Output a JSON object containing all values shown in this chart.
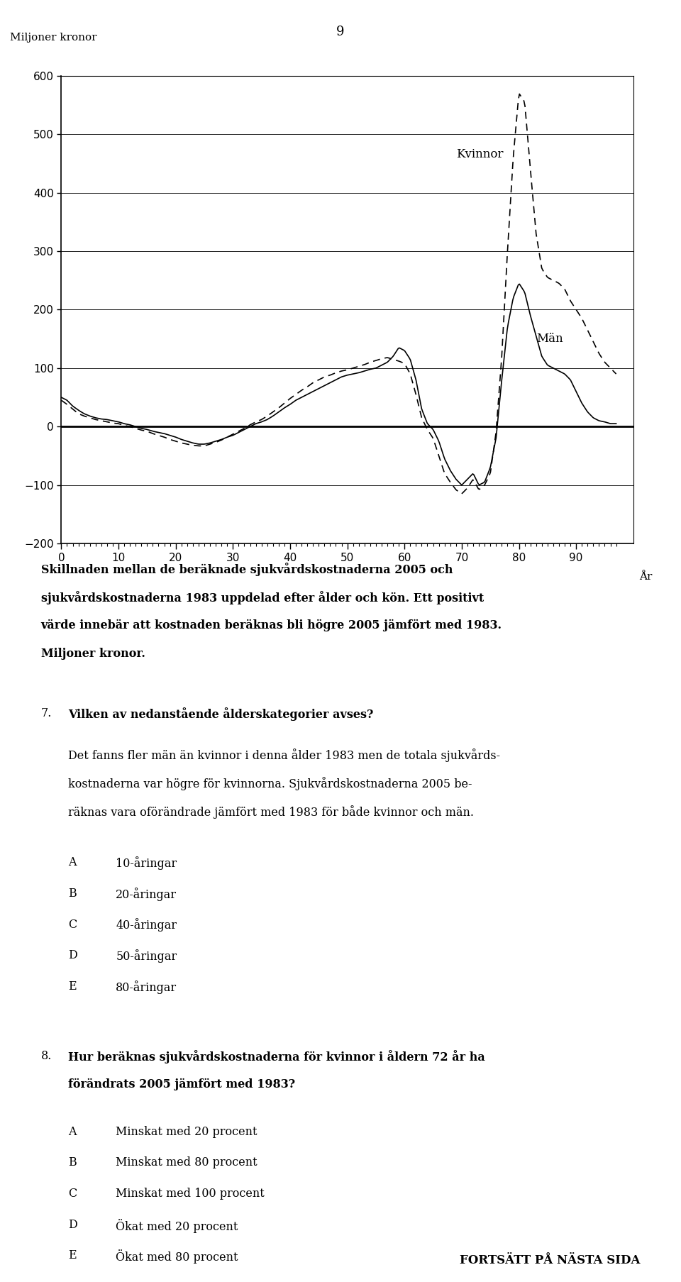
{
  "page_number": "9",
  "ylabel_above": "Miljoner kronor",
  "xlabel": "År",
  "ylim": [
    -200,
    600
  ],
  "xlim": [
    0,
    100
  ],
  "yticks": [
    -200,
    -100,
    0,
    100,
    200,
    300,
    400,
    500,
    600
  ],
  "xticks": [
    0,
    10,
    20,
    30,
    40,
    50,
    60,
    70,
    80,
    90
  ],
  "kvinnor_label": "Kvinnor",
  "man_label": "Män",
  "man_points": [
    [
      0,
      50
    ],
    [
      1,
      45
    ],
    [
      2,
      35
    ],
    [
      3,
      28
    ],
    [
      4,
      22
    ],
    [
      5,
      18
    ],
    [
      6,
      15
    ],
    [
      7,
      13
    ],
    [
      8,
      12
    ],
    [
      9,
      10
    ],
    [
      10,
      8
    ],
    [
      11,
      5
    ],
    [
      12,
      3
    ],
    [
      13,
      0
    ],
    [
      14,
      -3
    ],
    [
      15,
      -5
    ],
    [
      16,
      -8
    ],
    [
      17,
      -10
    ],
    [
      18,
      -12
    ],
    [
      19,
      -15
    ],
    [
      20,
      -18
    ],
    [
      21,
      -22
    ],
    [
      22,
      -25
    ],
    [
      23,
      -28
    ],
    [
      24,
      -30
    ],
    [
      25,
      -30
    ],
    [
      26,
      -28
    ],
    [
      27,
      -25
    ],
    [
      28,
      -22
    ],
    [
      29,
      -18
    ],
    [
      30,
      -15
    ],
    [
      31,
      -10
    ],
    [
      32,
      -5
    ],
    [
      33,
      0
    ],
    [
      34,
      5
    ],
    [
      35,
      8
    ],
    [
      36,
      12
    ],
    [
      37,
      18
    ],
    [
      38,
      25
    ],
    [
      39,
      32
    ],
    [
      40,
      38
    ],
    [
      41,
      45
    ],
    [
      42,
      50
    ],
    [
      43,
      55
    ],
    [
      44,
      60
    ],
    [
      45,
      65
    ],
    [
      46,
      70
    ],
    [
      47,
      75
    ],
    [
      48,
      80
    ],
    [
      49,
      85
    ],
    [
      50,
      88
    ],
    [
      51,
      90
    ],
    [
      52,
      92
    ],
    [
      53,
      95
    ],
    [
      54,
      98
    ],
    [
      55,
      100
    ],
    [
      56,
      105
    ],
    [
      57,
      110
    ],
    [
      58,
      120
    ],
    [
      59,
      135
    ],
    [
      60,
      130
    ],
    [
      61,
      115
    ],
    [
      62,
      80
    ],
    [
      63,
      30
    ],
    [
      64,
      5
    ],
    [
      65,
      -5
    ],
    [
      66,
      -25
    ],
    [
      67,
      -55
    ],
    [
      68,
      -75
    ],
    [
      69,
      -90
    ],
    [
      70,
      -100
    ],
    [
      71,
      -90
    ],
    [
      72,
      -80
    ],
    [
      73,
      -100
    ],
    [
      74,
      -95
    ],
    [
      75,
      -70
    ],
    [
      76,
      -20
    ],
    [
      77,
      80
    ],
    [
      78,
      170
    ],
    [
      79,
      220
    ],
    [
      80,
      245
    ],
    [
      81,
      230
    ],
    [
      82,
      190
    ],
    [
      83,
      155
    ],
    [
      84,
      120
    ],
    [
      85,
      105
    ],
    [
      86,
      100
    ],
    [
      87,
      95
    ],
    [
      88,
      90
    ],
    [
      89,
      80
    ],
    [
      90,
      60
    ],
    [
      91,
      40
    ],
    [
      92,
      25
    ],
    [
      93,
      15
    ],
    [
      94,
      10
    ],
    [
      95,
      8
    ],
    [
      96,
      5
    ],
    [
      97,
      5
    ]
  ],
  "kvinnor_points": [
    [
      0,
      45
    ],
    [
      1,
      38
    ],
    [
      2,
      30
    ],
    [
      3,
      22
    ],
    [
      4,
      18
    ],
    [
      5,
      15
    ],
    [
      6,
      12
    ],
    [
      7,
      10
    ],
    [
      8,
      8
    ],
    [
      9,
      6
    ],
    [
      10,
      5
    ],
    [
      11,
      2
    ],
    [
      12,
      0
    ],
    [
      13,
      -3
    ],
    [
      14,
      -6
    ],
    [
      15,
      -8
    ],
    [
      16,
      -12
    ],
    [
      17,
      -15
    ],
    [
      18,
      -18
    ],
    [
      19,
      -22
    ],
    [
      20,
      -25
    ],
    [
      21,
      -28
    ],
    [
      22,
      -30
    ],
    [
      23,
      -32
    ],
    [
      24,
      -33
    ],
    [
      25,
      -33
    ],
    [
      26,
      -30
    ],
    [
      27,
      -27
    ],
    [
      28,
      -23
    ],
    [
      29,
      -18
    ],
    [
      30,
      -13
    ],
    [
      31,
      -8
    ],
    [
      32,
      -3
    ],
    [
      33,
      3
    ],
    [
      34,
      8
    ],
    [
      35,
      12
    ],
    [
      36,
      18
    ],
    [
      37,
      25
    ],
    [
      38,
      32
    ],
    [
      39,
      40
    ],
    [
      40,
      48
    ],
    [
      41,
      55
    ],
    [
      42,
      62
    ],
    [
      43,
      68
    ],
    [
      44,
      75
    ],
    [
      45,
      80
    ],
    [
      46,
      85
    ],
    [
      47,
      88
    ],
    [
      48,
      92
    ],
    [
      49,
      95
    ],
    [
      50,
      97
    ],
    [
      51,
      100
    ],
    [
      52,
      103
    ],
    [
      53,
      106
    ],
    [
      54,
      110
    ],
    [
      55,
      113
    ],
    [
      56,
      116
    ],
    [
      57,
      118
    ],
    [
      58,
      115
    ],
    [
      59,
      112
    ],
    [
      60,
      108
    ],
    [
      61,
      90
    ],
    [
      62,
      55
    ],
    [
      63,
      15
    ],
    [
      64,
      -5
    ],
    [
      65,
      -20
    ],
    [
      66,
      -50
    ],
    [
      67,
      -80
    ],
    [
      68,
      -95
    ],
    [
      69,
      -108
    ],
    [
      70,
      -115
    ],
    [
      71,
      -105
    ],
    [
      72,
      -90
    ],
    [
      73,
      -108
    ],
    [
      74,
      -100
    ],
    [
      75,
      -80
    ],
    [
      76,
      -10
    ],
    [
      77,
      120
    ],
    [
      78,
      300
    ],
    [
      79,
      460
    ],
    [
      80,
      570
    ],
    [
      81,
      555
    ],
    [
      82,
      440
    ],
    [
      83,
      330
    ],
    [
      84,
      270
    ],
    [
      85,
      255
    ],
    [
      86,
      250
    ],
    [
      87,
      245
    ],
    [
      88,
      235
    ],
    [
      89,
      215
    ],
    [
      90,
      200
    ],
    [
      91,
      185
    ],
    [
      92,
      165
    ],
    [
      93,
      145
    ],
    [
      94,
      125
    ],
    [
      95,
      110
    ],
    [
      96,
      100
    ],
    [
      97,
      90
    ]
  ],
  "caption_line1": "Skillnaden mellan de beräknade sjukvårdskostnaderna 2005 och",
  "caption_line2": "sjukvårdskostnaderna 1983 uppdelad efter ålder och kön. Ett positivt",
  "caption_line3": "värde innebär att kostnaden beräknas bli högre 2005 jämfört med 1983.",
  "caption_line4": "Miljoner kronor.",
  "q7_num": "7.",
  "q7_bold": "Vilken av nedanstående ålderskategorier avses?",
  "q7_text1": "Det fanns fler män än kvinnor i denna ålder 1983 men de totala sjukvårds-",
  "q7_text2": "kostnaderna var högre för kvinnorna. Sjukvårdskostnaderna 2005 be-",
  "q7_text3": "räknas vara oförändrade jämfört med 1983 för både kvinnor och män.",
  "q7_options": [
    [
      "A",
      "10-åringar"
    ],
    [
      "B",
      "20-åringar"
    ],
    [
      "C",
      "40-åringar"
    ],
    [
      "D",
      "50-åringar"
    ],
    [
      "E",
      "80-åringar"
    ]
  ],
  "q8_num": "8.",
  "q8_bold1": "Hur beräknas sjukvårdskostnaderna för kvinnor i åldern 72 år ha",
  "q8_bold2": "förändrats 2005 jämfört med 1983?",
  "q8_options": [
    [
      "A",
      "Minskat med 20 procent"
    ],
    [
      "B",
      "Minskat med 80 procent"
    ],
    [
      "C",
      "Minskat med 100 procent"
    ],
    [
      "D",
      "Ökat med 20 procent"
    ],
    [
      "E",
      "Ökat med 80 procent"
    ]
  ],
  "footer": "FORTSÄTT PÅ NÄSTA SIDA",
  "background_color": "#ffffff"
}
